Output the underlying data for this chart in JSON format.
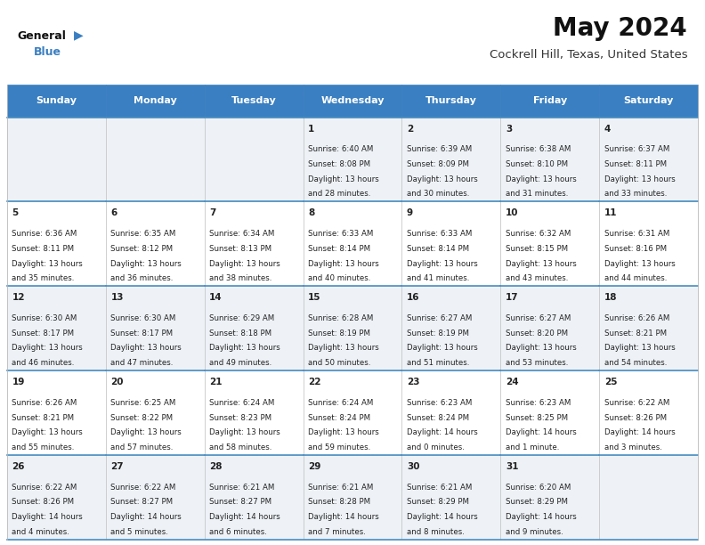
{
  "title": "May 2024",
  "subtitle": "Cockrell Hill, Texas, United States",
  "header_bg": "#3a7fc1",
  "header_text": "#ffffff",
  "cell_bg_odd": "#eef2f7",
  "cell_bg_even": "#ffffff",
  "border_color": "#4a90c4",
  "text_color": "#222222",
  "days_of_week": [
    "Sunday",
    "Monday",
    "Tuesday",
    "Wednesday",
    "Thursday",
    "Friday",
    "Saturday"
  ],
  "calendar": [
    [
      {
        "day": "",
        "sunrise": "",
        "sunset": "",
        "daylight_h": "",
        "daylight_m": ""
      },
      {
        "day": "",
        "sunrise": "",
        "sunset": "",
        "daylight_h": "",
        "daylight_m": ""
      },
      {
        "day": "",
        "sunrise": "",
        "sunset": "",
        "daylight_h": "",
        "daylight_m": ""
      },
      {
        "day": "1",
        "sunrise": "6:40 AM",
        "sunset": "8:08 PM",
        "daylight_h": "13",
        "daylight_m": "28"
      },
      {
        "day": "2",
        "sunrise": "6:39 AM",
        "sunset": "8:09 PM",
        "daylight_h": "13",
        "daylight_m": "30"
      },
      {
        "day": "3",
        "sunrise": "6:38 AM",
        "sunset": "8:10 PM",
        "daylight_h": "13",
        "daylight_m": "31"
      },
      {
        "day": "4",
        "sunrise": "6:37 AM",
        "sunset": "8:11 PM",
        "daylight_h": "13",
        "daylight_m": "33"
      }
    ],
    [
      {
        "day": "5",
        "sunrise": "6:36 AM",
        "sunset": "8:11 PM",
        "daylight_h": "13",
        "daylight_m": "35"
      },
      {
        "day": "6",
        "sunrise": "6:35 AM",
        "sunset": "8:12 PM",
        "daylight_h": "13",
        "daylight_m": "36"
      },
      {
        "day": "7",
        "sunrise": "6:34 AM",
        "sunset": "8:13 PM",
        "daylight_h": "13",
        "daylight_m": "38"
      },
      {
        "day": "8",
        "sunrise": "6:33 AM",
        "sunset": "8:14 PM",
        "daylight_h": "13",
        "daylight_m": "40"
      },
      {
        "day": "9",
        "sunrise": "6:33 AM",
        "sunset": "8:14 PM",
        "daylight_h": "13",
        "daylight_m": "41"
      },
      {
        "day": "10",
        "sunrise": "6:32 AM",
        "sunset": "8:15 PM",
        "daylight_h": "13",
        "daylight_m": "43"
      },
      {
        "day": "11",
        "sunrise": "6:31 AM",
        "sunset": "8:16 PM",
        "daylight_h": "13",
        "daylight_m": "44"
      }
    ],
    [
      {
        "day": "12",
        "sunrise": "6:30 AM",
        "sunset": "8:17 PM",
        "daylight_h": "13",
        "daylight_m": "46"
      },
      {
        "day": "13",
        "sunrise": "6:30 AM",
        "sunset": "8:17 PM",
        "daylight_h": "13",
        "daylight_m": "47"
      },
      {
        "day": "14",
        "sunrise": "6:29 AM",
        "sunset": "8:18 PM",
        "daylight_h": "13",
        "daylight_m": "49"
      },
      {
        "day": "15",
        "sunrise": "6:28 AM",
        "sunset": "8:19 PM",
        "daylight_h": "13",
        "daylight_m": "50"
      },
      {
        "day": "16",
        "sunrise": "6:27 AM",
        "sunset": "8:19 PM",
        "daylight_h": "13",
        "daylight_m": "51"
      },
      {
        "day": "17",
        "sunrise": "6:27 AM",
        "sunset": "8:20 PM",
        "daylight_h": "13",
        "daylight_m": "53"
      },
      {
        "day": "18",
        "sunrise": "6:26 AM",
        "sunset": "8:21 PM",
        "daylight_h": "13",
        "daylight_m": "54"
      }
    ],
    [
      {
        "day": "19",
        "sunrise": "6:26 AM",
        "sunset": "8:21 PM",
        "daylight_h": "13",
        "daylight_m": "55"
      },
      {
        "day": "20",
        "sunrise": "6:25 AM",
        "sunset": "8:22 PM",
        "daylight_h": "13",
        "daylight_m": "57"
      },
      {
        "day": "21",
        "sunrise": "6:24 AM",
        "sunset": "8:23 PM",
        "daylight_h": "13",
        "daylight_m": "58"
      },
      {
        "day": "22",
        "sunrise": "6:24 AM",
        "sunset": "8:24 PM",
        "daylight_h": "13",
        "daylight_m": "59"
      },
      {
        "day": "23",
        "sunrise": "6:23 AM",
        "sunset": "8:24 PM",
        "daylight_h": "14",
        "daylight_m": "0"
      },
      {
        "day": "24",
        "sunrise": "6:23 AM",
        "sunset": "8:25 PM",
        "daylight_h": "14",
        "daylight_m": "1"
      },
      {
        "day": "25",
        "sunrise": "6:22 AM",
        "sunset": "8:26 PM",
        "daylight_h": "14",
        "daylight_m": "3"
      }
    ],
    [
      {
        "day": "26",
        "sunrise": "6:22 AM",
        "sunset": "8:26 PM",
        "daylight_h": "14",
        "daylight_m": "4"
      },
      {
        "day": "27",
        "sunrise": "6:22 AM",
        "sunset": "8:27 PM",
        "daylight_h": "14",
        "daylight_m": "5"
      },
      {
        "day": "28",
        "sunrise": "6:21 AM",
        "sunset": "8:27 PM",
        "daylight_h": "14",
        "daylight_m": "6"
      },
      {
        "day": "29",
        "sunrise": "6:21 AM",
        "sunset": "8:28 PM",
        "daylight_h": "14",
        "daylight_m": "7"
      },
      {
        "day": "30",
        "sunrise": "6:21 AM",
        "sunset": "8:29 PM",
        "daylight_h": "14",
        "daylight_m": "8"
      },
      {
        "day": "31",
        "sunrise": "6:20 AM",
        "sunset": "8:29 PM",
        "daylight_h": "14",
        "daylight_m": "9"
      },
      {
        "day": "",
        "sunrise": "",
        "sunset": "",
        "daylight_h": "",
        "daylight_m": ""
      }
    ]
  ],
  "figwidth": 7.92,
  "figheight": 6.12,
  "dpi": 100
}
